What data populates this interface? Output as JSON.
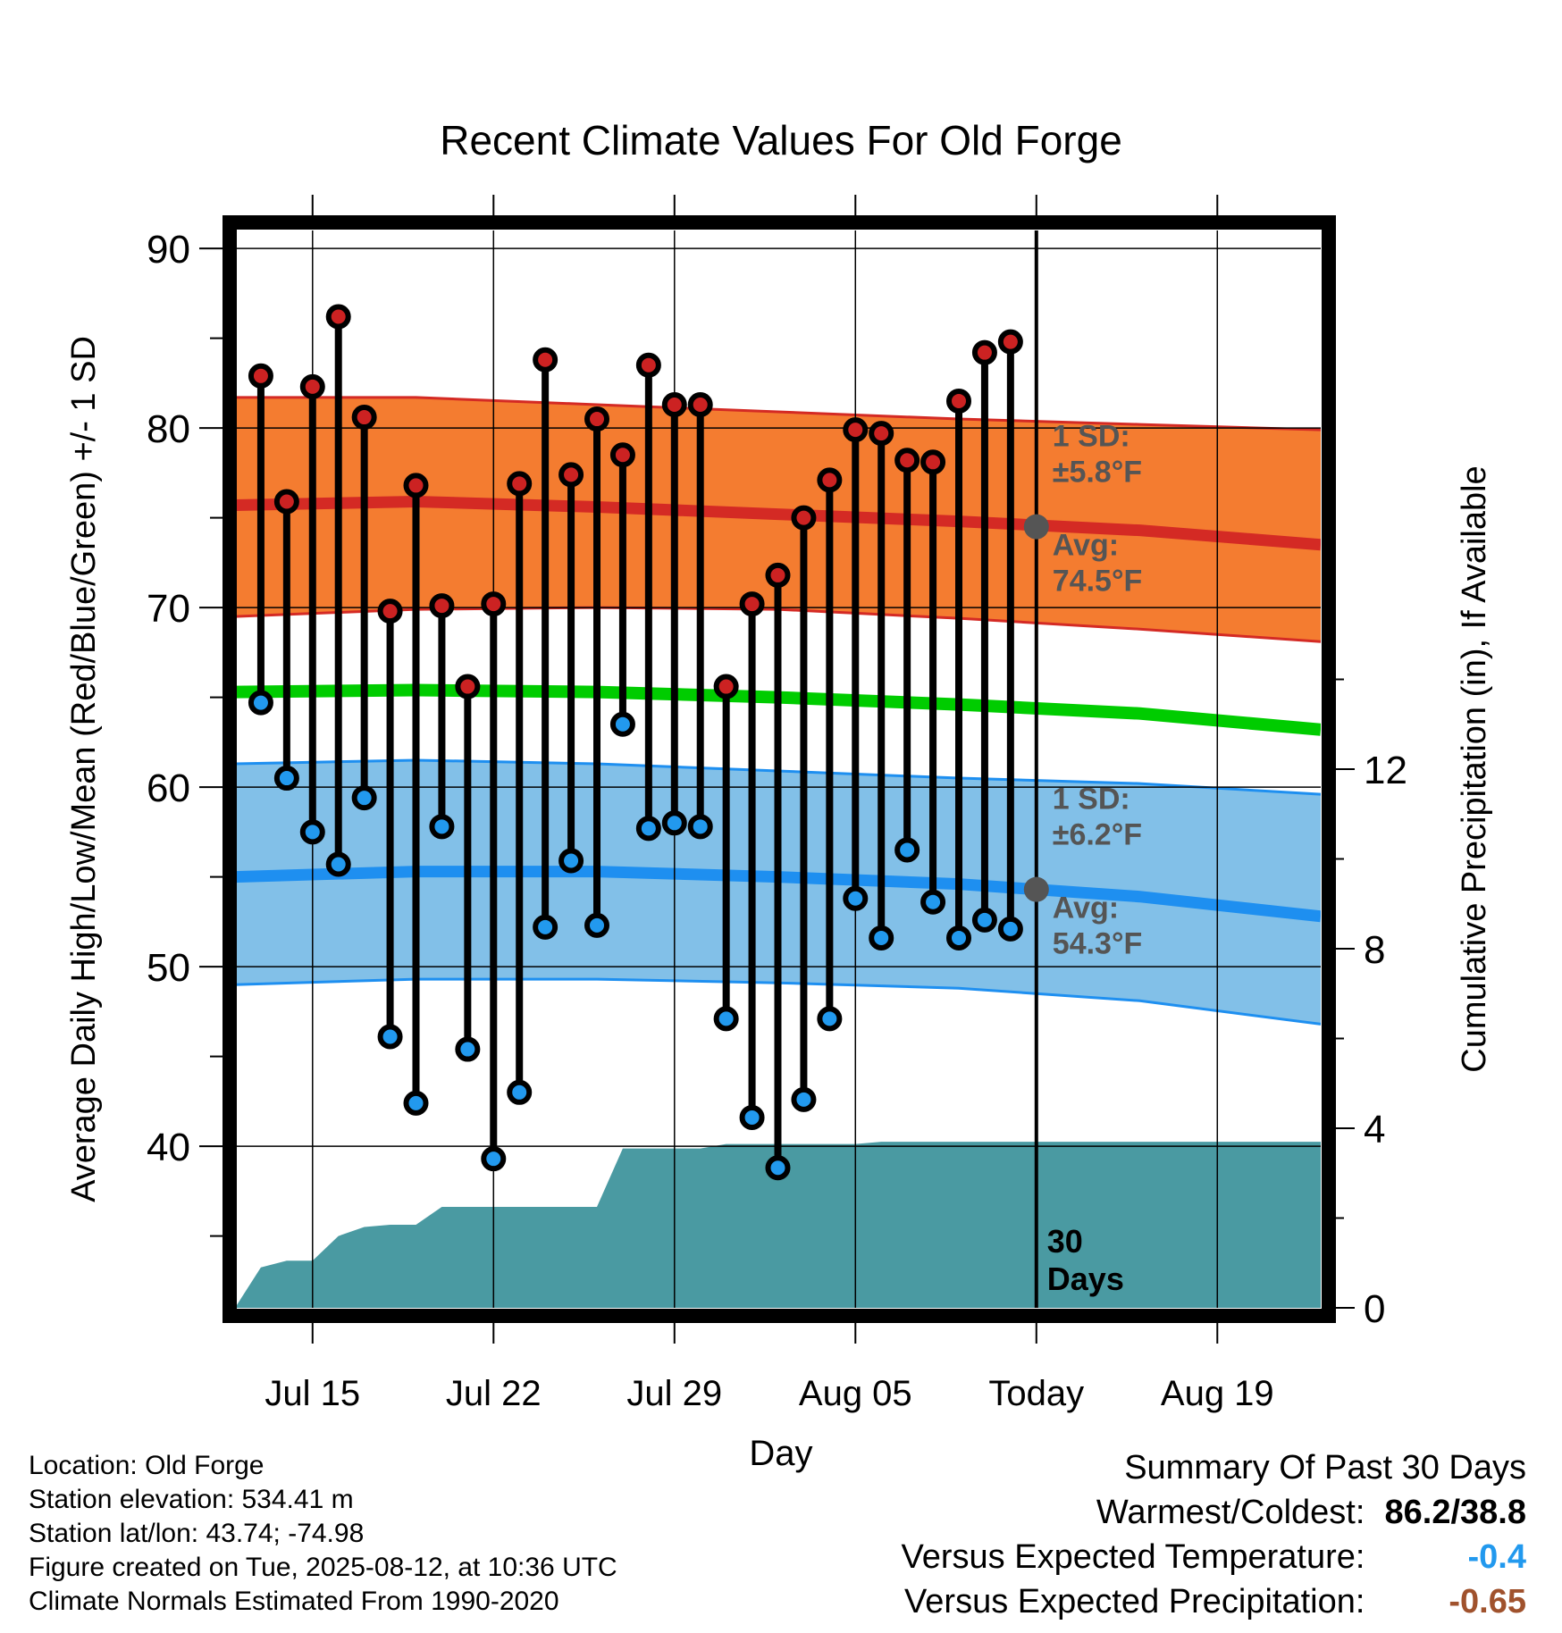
{
  "chart_data": {
    "type": "line",
    "title": "Recent Climate Values For Old Forge",
    "xlabel": "Day",
    "ylabel": "Average Daily High/Low/Mean (Red/Blue/Green) +/- 1 SD",
    "y2label": "Cumulative Precipitation (in), If Available",
    "ylim": [
      31,
      91
    ],
    "y2lim": [
      0,
      24
    ],
    "x_ticks": [
      "Jul 15",
      "Jul 22",
      "Jul 29",
      "Aug 05",
      "Today",
      "Aug 19"
    ],
    "y_ticks": [
      40,
      50,
      60,
      70,
      80,
      90
    ],
    "y2_ticks": [
      0,
      4,
      8,
      12
    ],
    "x_range_days": [
      "Jul 12",
      "Aug 23"
    ],
    "today_date": "Aug 12",
    "observed": {
      "dates": [
        "Jul 13",
        "Jul 14",
        "Jul 15",
        "Jul 16",
        "Jul 17",
        "Jul 18",
        "Jul 19",
        "Jul 20",
        "Jul 21",
        "Jul 22",
        "Jul 23",
        "Jul 24",
        "Jul 25",
        "Jul 26",
        "Jul 27",
        "Jul 28",
        "Jul 29",
        "Jul 30",
        "Jul 31",
        "Aug 01",
        "Aug 02",
        "Aug 03",
        "Aug 04",
        "Aug 05",
        "Aug 06",
        "Aug 07",
        "Aug 08",
        "Aug 09",
        "Aug 10",
        "Aug 11"
      ],
      "high": [
        82.9,
        75.9,
        82.3,
        86.2,
        80.6,
        69.8,
        76.8,
        70.1,
        65.6,
        70.2,
        76.9,
        83.8,
        77.4,
        80.5,
        78.5,
        83.5,
        81.3,
        81.3,
        65.6,
        70.2,
        71.8,
        75.0,
        77.1,
        79.9,
        79.7,
        78.2,
        78.1,
        81.5,
        84.2,
        84.8
      ],
      "low": [
        64.7,
        60.5,
        57.5,
        55.7,
        59.4,
        46.1,
        42.4,
        57.8,
        45.4,
        39.3,
        43.0,
        52.2,
        55.9,
        52.3,
        63.5,
        57.7,
        58.0,
        57.8,
        47.1,
        41.6,
        38.8,
        42.6,
        47.1,
        53.8,
        51.6,
        56.5,
        53.6,
        51.6,
        52.6,
        52.1
      ]
    },
    "normals": {
      "dates": [
        "Jul 12",
        "Jul 19",
        "Jul 26",
        "Aug 02",
        "Aug 09",
        "Aug 16",
        "Aug 23"
      ],
      "high_avg": [
        75.7,
        75.9,
        75.6,
        75.2,
        74.8,
        74.3,
        73.5
      ],
      "high_upper": [
        81.7,
        81.7,
        81.3,
        80.9,
        80.5,
        80.2,
        79.9
      ],
      "high_lower": [
        69.5,
        69.9,
        70.0,
        69.9,
        69.4,
        68.8,
        68.1
      ],
      "mean_avg": [
        65.3,
        65.4,
        65.3,
        65.0,
        64.6,
        64.1,
        63.2
      ],
      "low_avg": [
        55.0,
        55.3,
        55.3,
        55.0,
        54.6,
        53.9,
        52.8
      ],
      "low_upper": [
        61.3,
        61.5,
        61.3,
        60.9,
        60.5,
        60.2,
        59.6
      ],
      "low_lower": [
        49.0,
        49.3,
        49.3,
        49.1,
        48.8,
        48.1,
        46.8
      ]
    },
    "precipitation": {
      "dates": [
        "Jul 12",
        "Jul 13",
        "Jul 14",
        "Jul 15",
        "Jul 16",
        "Jul 17",
        "Jul 18",
        "Jul 19",
        "Jul 20",
        "Jul 21",
        "Jul 22",
        "Jul 23",
        "Jul 24",
        "Jul 25",
        "Jul 26",
        "Jul 27",
        "Jul 28",
        "Jul 29",
        "Jul 30",
        "Jul 31",
        "Aug 01",
        "Aug 02",
        "Aug 03",
        "Aug 04",
        "Aug 05",
        "Aug 06",
        "Aug 07",
        "Aug 23"
      ],
      "cumulative": [
        0.0,
        0.9,
        1.05,
        1.05,
        1.6,
        1.8,
        1.85,
        1.85,
        2.25,
        2.25,
        2.25,
        2.25,
        2.25,
        2.25,
        2.25,
        3.55,
        3.55,
        3.55,
        3.55,
        3.65,
        3.65,
        3.65,
        3.65,
        3.65,
        3.65,
        3.7,
        3.7,
        3.7
      ]
    },
    "annotations": {
      "high_sd_label": "1 SD:",
      "high_sd_value": "±5.8°F",
      "high_avg_label": "Avg:",
      "high_avg_value": "74.5°F",
      "high_avg_today": 74.5,
      "low_sd_label": "1 SD:",
      "low_sd_value": "±6.2°F",
      "low_avg_label": "Avg:",
      "low_avg_value": "54.3°F",
      "low_avg_today": 54.3,
      "days_label_line1": "30",
      "days_label_line2": "Days"
    },
    "colors": {
      "high_band": "#f47c30",
      "high_line": "#d42a24",
      "mean_line": "#00cc00",
      "low_band": "#82c0e8",
      "low_line": "#1e8ff0",
      "precip": "#4a9aa2",
      "high_marker": "#cc2222",
      "low_marker": "#2299ee",
      "annotation": "#555555"
    }
  },
  "meta": {
    "location": "Location: Old Forge",
    "elevation": "Station elevation: 534.41 m",
    "latlon": "Station lat/lon: 43.74; -74.98",
    "created": "Figure created on Tue, 2025-08-12, at 10:36 UTC",
    "normals": "Climate Normals Estimated From 1990-2020"
  },
  "summary": {
    "title": "Summary Of Past 30 Days",
    "warmest_label": "Warmest/Coldest:",
    "warmest_value": "86.2/38.8",
    "temp_label": "Versus Expected Temperature:",
    "temp_value": "-0.4",
    "temp_color": "#2299ee",
    "precip_label": "Versus Expected Precipitation:",
    "precip_value": "-0.65",
    "precip_color": "#a0522d"
  }
}
